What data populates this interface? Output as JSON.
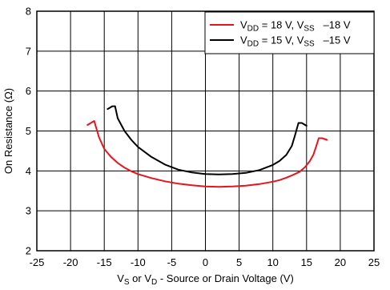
{
  "chart_data": {
    "type": "line",
    "xlabel": {
      "parts": [
        {
          "t": "V"
        },
        {
          "t": "S",
          "sub": true
        },
        {
          "t": " or V"
        },
        {
          "t": "D",
          "sub": true
        },
        {
          "t": " - Source or Drain Voltage (V)"
        }
      ]
    },
    "ylabel": "On Resistance (Ω)",
    "xlim": [
      -25,
      25
    ],
    "ylim": [
      2,
      8
    ],
    "x_ticks": [
      -25,
      -20,
      -15,
      -10,
      -5,
      0,
      5,
      10,
      15,
      20,
      25
    ],
    "y_ticks": [
      2,
      3,
      4,
      5,
      6,
      7,
      8
    ],
    "grid": true,
    "legend_position": "top-right",
    "series": [
      {
        "name": {
          "parts": [
            {
              "t": "V"
            },
            {
              "t": "DD",
              "sub": true
            },
            {
              "t": " = 18 V, V"
            },
            {
              "t": "SS",
              "sub": true
            },
            {
              "t": "   –18 V"
            }
          ]
        },
        "color": "#e8141b",
        "x": [
          -17.5,
          -16.5,
          -15.8,
          -15,
          -14,
          -13,
          -12,
          -11,
          -10,
          -8,
          -6,
          -4,
          -2,
          0,
          2,
          4,
          6,
          8,
          10,
          11,
          12,
          13,
          14,
          14.8,
          15.5,
          16,
          16.4,
          16.8,
          17.3,
          18
        ],
        "y": [
          5.15,
          5.25,
          4.85,
          4.55,
          4.35,
          4.2,
          4.08,
          3.99,
          3.92,
          3.82,
          3.74,
          3.68,
          3.64,
          3.61,
          3.6,
          3.61,
          3.63,
          3.67,
          3.73,
          3.77,
          3.83,
          3.9,
          3.98,
          4.1,
          4.25,
          4.4,
          4.6,
          4.82,
          4.82,
          4.78
        ]
      },
      {
        "name": {
          "parts": [
            {
              "t": "V"
            },
            {
              "t": "DD",
              "sub": true
            },
            {
              "t": " = 15 V, V"
            },
            {
              "t": "SS",
              "sub": true
            },
            {
              "t": "   –15 V"
            }
          ]
        },
        "color": "#000000",
        "x": [
          -14.5,
          -13.8,
          -13.4,
          -13,
          -12,
          -11,
          -10,
          -8,
          -6,
          -4,
          -2,
          0,
          2,
          4,
          6,
          8,
          10,
          11,
          12,
          12.8,
          13.3,
          13.8,
          14.3,
          15
        ],
        "y": [
          5.55,
          5.62,
          5.62,
          5.32,
          5.0,
          4.78,
          4.6,
          4.35,
          4.16,
          4.03,
          3.96,
          3.92,
          3.91,
          3.92,
          3.95,
          4.02,
          4.15,
          4.25,
          4.4,
          4.62,
          4.9,
          5.2,
          5.2,
          5.13
        ]
      }
    ]
  }
}
